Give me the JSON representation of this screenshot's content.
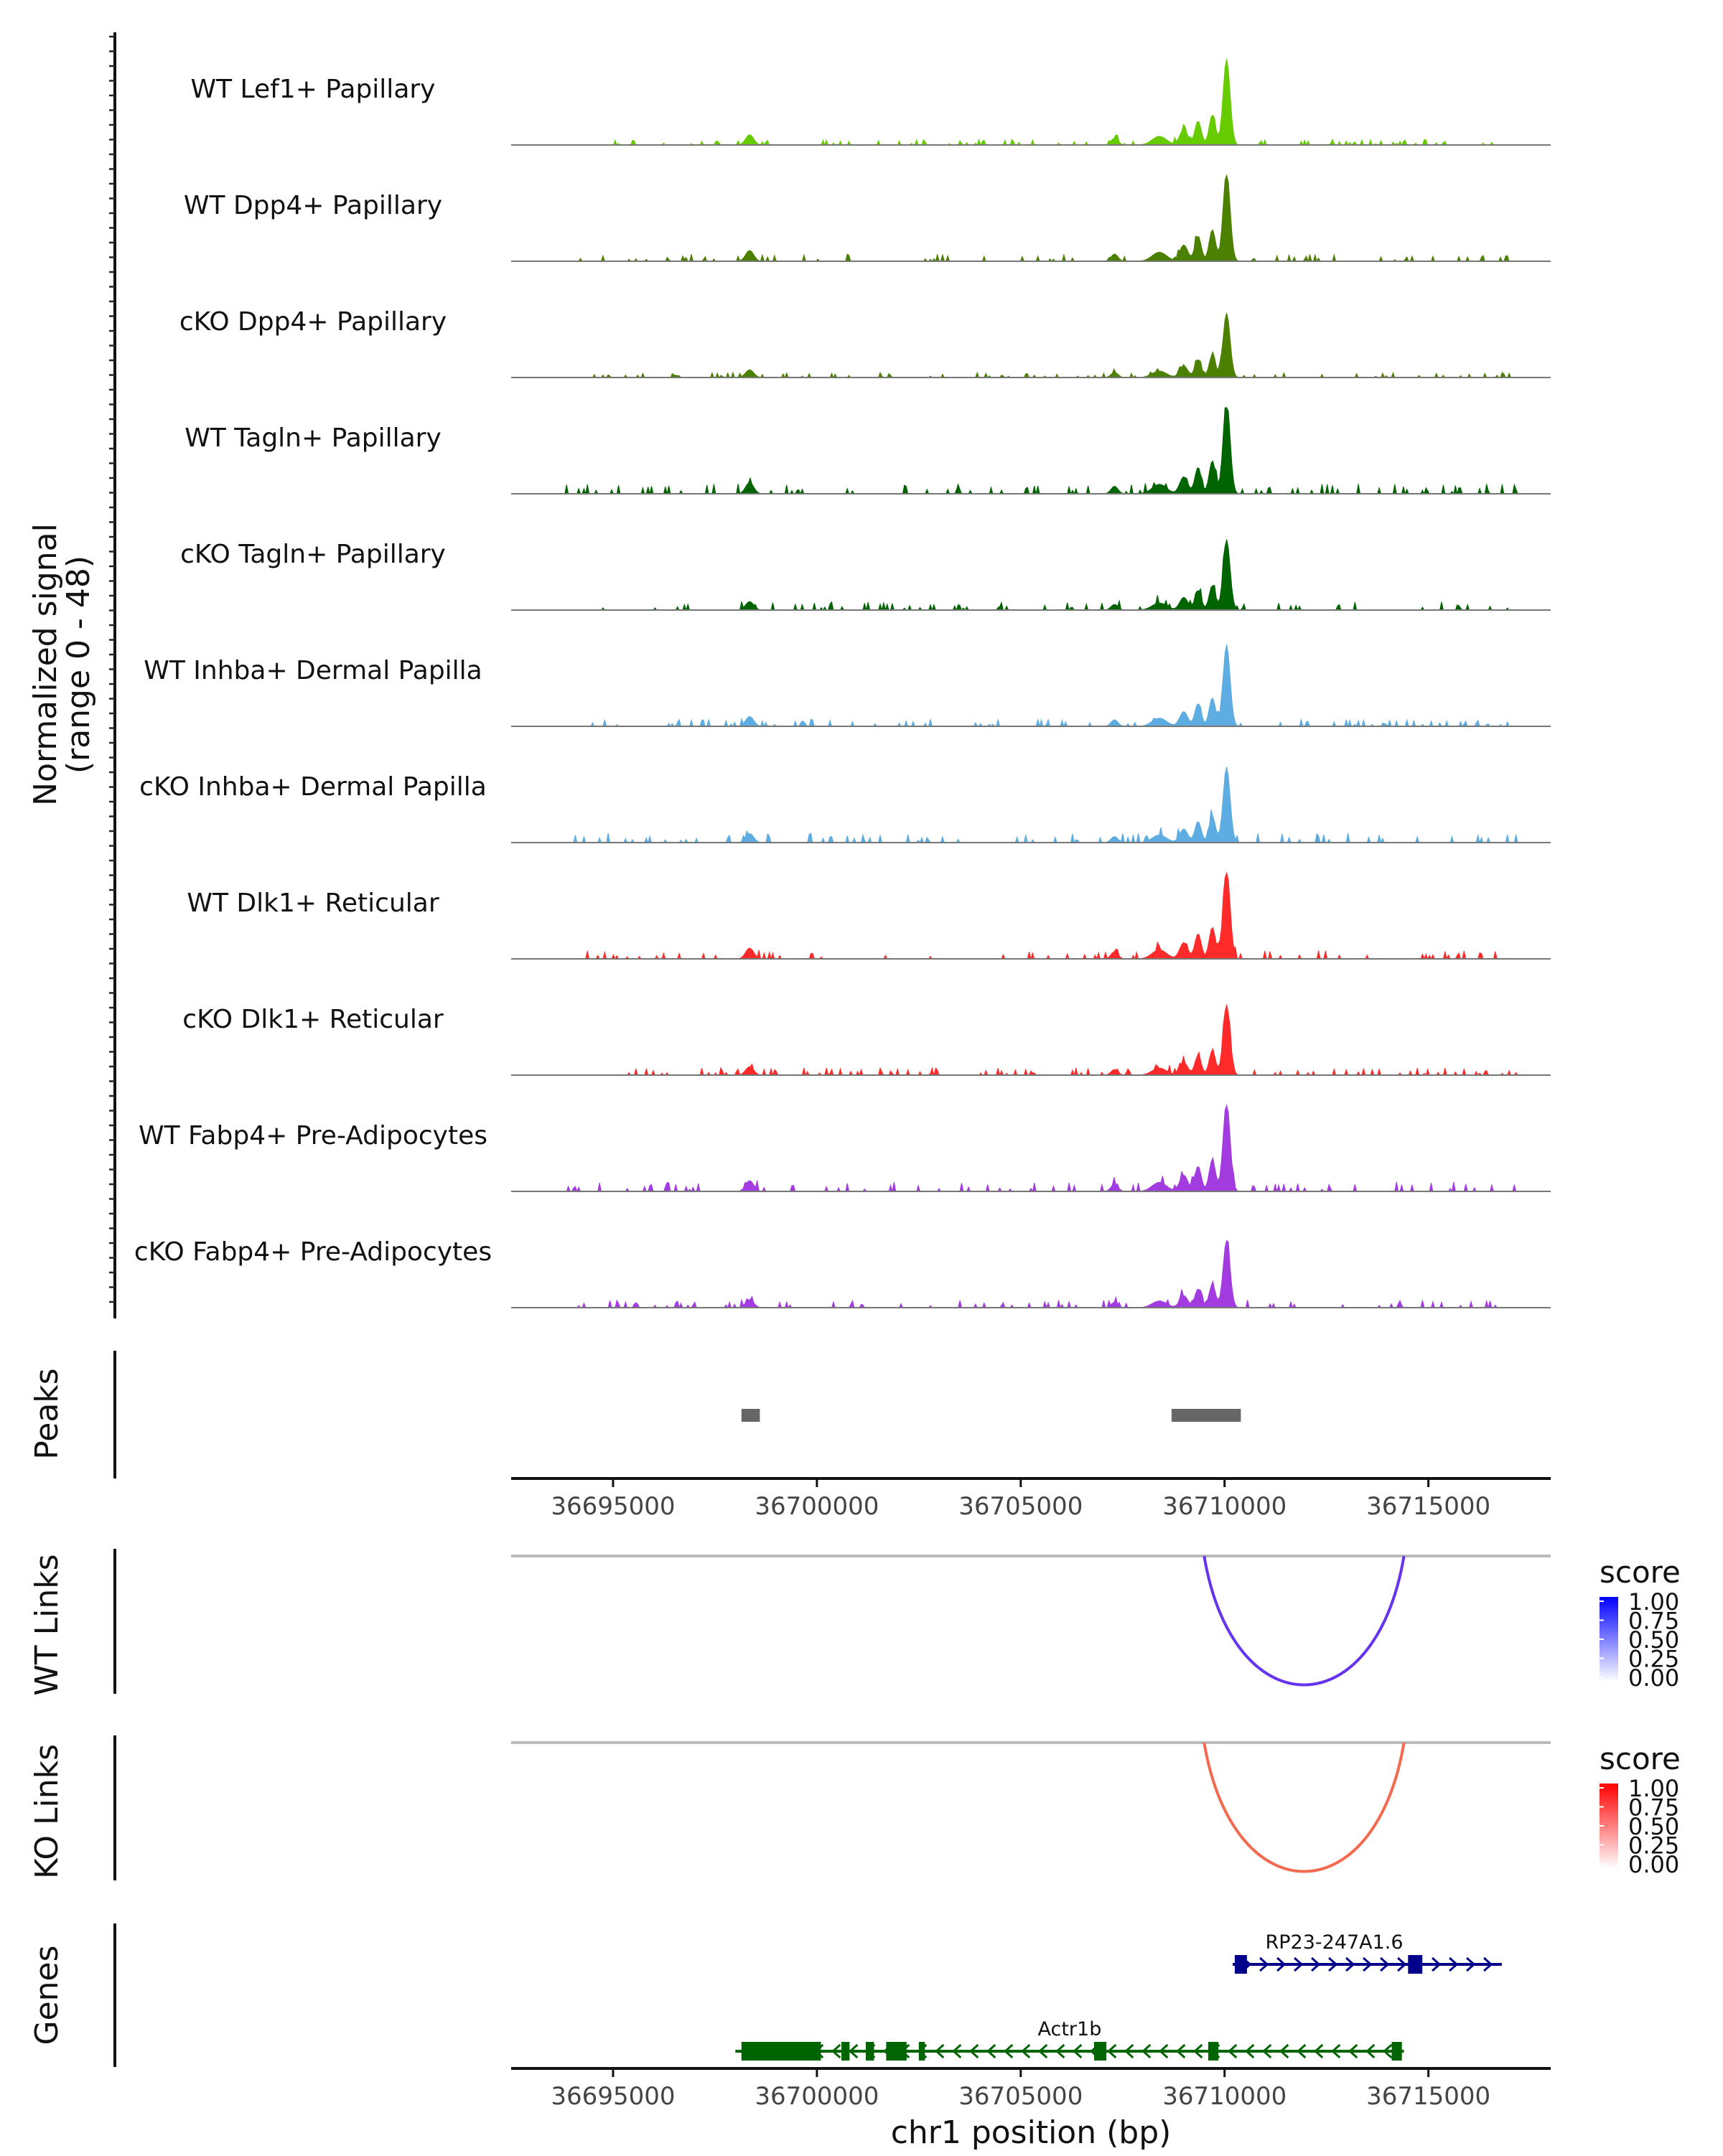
{
  "chart_data": {
    "type": "area",
    "title": "",
    "region": "chr1",
    "xlim": [
      36692500,
      36718000
    ],
    "coverage": {
      "ylabel_line1": "Normalized signal",
      "ylabel_line2": "(range 0 - 48)",
      "ylim": [
        0,
        48
      ],
      "tracks": [
        {
          "name": "WT Lef1+ Papillary",
          "color": "#66CC00",
          "scale": 1.0,
          "noise": 0.05,
          "seed": 11
        },
        {
          "name": "WT Dpp4+ Papillary",
          "color": "#4C8000",
          "scale": 1.05,
          "noise": 0.06,
          "seed": 23
        },
        {
          "name": "cKO Dpp4+ Papillary",
          "color": "#4C8000",
          "scale": 0.75,
          "noise": 0.06,
          "seed": 37
        },
        {
          "name": "WT Tagln+ Papillary",
          "color": "#006400",
          "scale": 1.1,
          "noise": 0.08,
          "seed": 41
        },
        {
          "name": "cKO Tagln+ Papillary",
          "color": "#006400",
          "scale": 0.82,
          "noise": 0.09,
          "seed": 53
        },
        {
          "name": "WT Inhba+ Dermal Papilla",
          "color": "#5DADE2",
          "scale": 0.95,
          "noise": 0.07,
          "seed": 67
        },
        {
          "name": "cKO Inhba+ Dermal Papilla",
          "color": "#5DADE2",
          "scale": 0.88,
          "noise": 0.1,
          "seed": 71
        },
        {
          "name": "WT Dlk1+ Reticular",
          "color": "#FF2A2A",
          "scale": 1.05,
          "noise": 0.07,
          "seed": 83
        },
        {
          "name": "cKO Dlk1+ Reticular",
          "color": "#FF2A2A",
          "scale": 0.82,
          "noise": 0.08,
          "seed": 97
        },
        {
          "name": "WT Fabp4+ Pre-Adipocytes",
          "color": "#A23BE0",
          "scale": 1.05,
          "noise": 0.08,
          "seed": 101
        },
        {
          "name": "cKO Fabp4+ Pre-Adipocytes",
          "color": "#A23BE0",
          "scale": 0.78,
          "noise": 0.09,
          "seed": 113
        }
      ]
    },
    "peaks": {
      "label": "Peaks",
      "color": "#666666",
      "regions": [
        [
          36698150,
          36698600
        ],
        [
          36708700,
          36710400
        ]
      ]
    },
    "x_axis": {
      "ticks": [
        36695000,
        36700000,
        36705000,
        36710000,
        36715000
      ],
      "tick_labels": [
        "36695000",
        "36700000",
        "36705000",
        "36710000",
        "36715000"
      ],
      "xlabel": "chr1 position (bp)"
    },
    "wt_links": {
      "label": "WT Links",
      "links": [
        {
          "start": 36709500,
          "end": 36714400,
          "score": 0.75
        }
      ],
      "color": "#6633EE",
      "legend": {
        "title": "score",
        "ticks": [
          "1.00",
          "0.75",
          "0.50",
          "0.25",
          "0.00"
        ],
        "color_low": "#FFFFFF",
        "color_high": "#0000FF"
      }
    },
    "ko_links": {
      "label": "KO Links",
      "links": [
        {
          "start": 36709500,
          "end": 36714400,
          "score": 0.75
        }
      ],
      "color": "#F26A4F",
      "legend": {
        "title": "score",
        "ticks": [
          "1.00",
          "0.75",
          "0.50",
          "0.25",
          "0.00"
        ],
        "color_low": "#FFFFFF",
        "color_high": "#FF0000"
      }
    },
    "genes": {
      "label": "Genes",
      "list": [
        {
          "name": "RP23-247A1.6",
          "strand": "+",
          "start": 36710200,
          "end": 36716800,
          "color": "#00008B",
          "exons": [
            [
              36710250,
              36710550
            ],
            [
              36714500,
              36714850
            ]
          ]
        },
        {
          "name": "Actr1b",
          "strand": "-",
          "start": 36698000,
          "end": 36714400,
          "color": "#006400",
          "exons": [
            [
              36698150,
              36700100
            ],
            [
              36700600,
              36700800
            ],
            [
              36701200,
              36701400
            ],
            [
              36701700,
              36702200
            ],
            [
              36702500,
              36702650
            ],
            [
              36706800,
              36707100
            ],
            [
              36709600,
              36709850
            ],
            [
              36714100,
              36714350
            ]
          ]
        }
      ]
    }
  }
}
